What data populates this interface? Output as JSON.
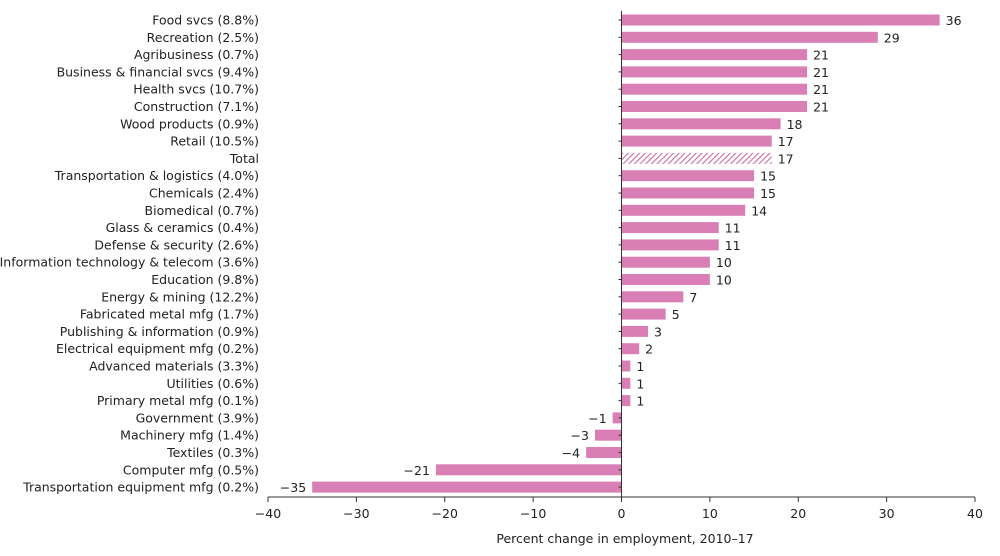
{
  "chart_data": {
    "type": "bar",
    "orientation": "horizontal",
    "title": "",
    "xlabel": "Percent change in employment, 2010–17",
    "ylabel": "",
    "xlim": [
      -40,
      40
    ],
    "xticks": [
      -40,
      -30,
      -20,
      -10,
      0,
      10,
      20,
      30,
      40
    ],
    "xtick_labels": [
      "−40",
      "−30",
      "−20",
      "−10",
      "0",
      "10",
      "20",
      "30",
      "40"
    ],
    "grid": false,
    "colors": {
      "bar": "#d97fb5",
      "total_hatch": "#c96aa5"
    },
    "categories": [
      "Food svcs (8.8%)",
      "Recreation (2.5%)",
      "Agribusiness (0.7%)",
      "Business & financial svcs (9.4%)",
      "Health svcs (10.7%)",
      "Construction (7.1%)",
      "Wood products (0.9%)",
      "Retail (10.5%)",
      "Total",
      "Transportation & logistics (4.0%)",
      "Chemicals (2.4%)",
      "Biomedical (0.7%)",
      "Glass & ceramics (0.4%)",
      "Defense & security (2.6%)",
      "Information technology & telecom (3.6%)",
      "Education (9.8%)",
      "Energy & mining (12.2%)",
      "Fabricated metal mfg (1.7%)",
      "Publishing & information (0.9%)",
      "Electrical equipment mfg (0.2%)",
      "Advanced materials (3.3%)",
      "Utilities (0.6%)",
      "Primary metal mfg (0.1%)",
      "Government (3.9%)",
      "Machinery mfg (1.4%)",
      "Textiles (0.3%)",
      "Computer mfg (0.5%)",
      "Transportation equipment mfg (0.2%)"
    ],
    "values": [
      36,
      29,
      21,
      21,
      21,
      21,
      18,
      17,
      17,
      15,
      15,
      14,
      11,
      11,
      10,
      10,
      7,
      5,
      3,
      2,
      1,
      1,
      1,
      -1,
      -3,
      -4,
      -21,
      -35
    ],
    "value_labels": [
      "36",
      "29",
      "21",
      "21",
      "21",
      "21",
      "18",
      "17",
      "17",
      "15",
      "15",
      "14",
      "11",
      "11",
      "10",
      "10",
      "7",
      "5",
      "3",
      "2",
      "1",
      "1",
      "1",
      "−1",
      "−3",
      "−4",
      "−21",
      "−35"
    ],
    "hatched_category": "Total"
  }
}
